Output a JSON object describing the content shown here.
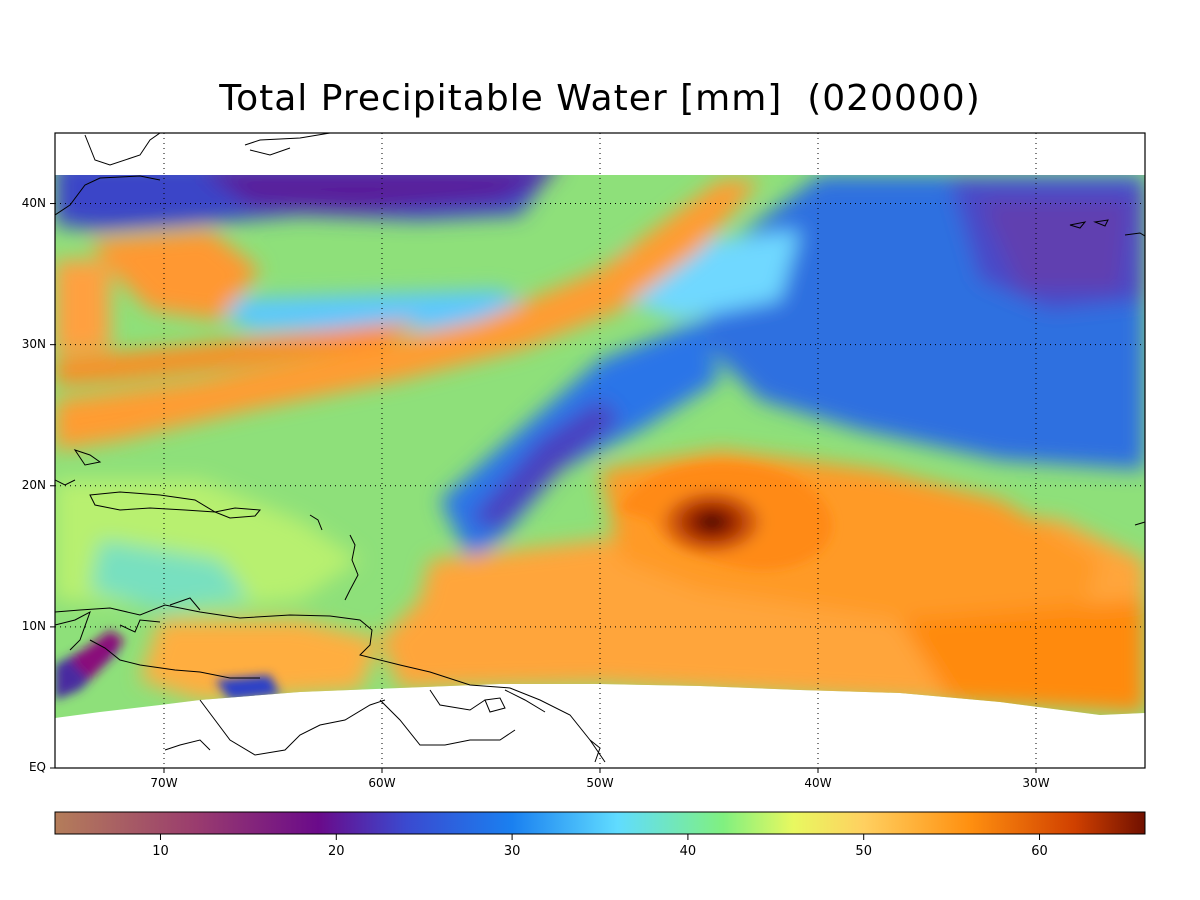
{
  "figure": {
    "title": "Total Precipitable Water [mm]  (020000)"
  },
  "map": {
    "projection": "lat-lon",
    "lon_range": [
      -75,
      -25
    ],
    "lat_range": [
      0,
      45
    ],
    "data_lat_range": [
      4,
      42
    ],
    "lat_ticks": [
      {
        "value": 40,
        "label": "40N"
      },
      {
        "value": 30,
        "label": "30N"
      },
      {
        "value": 20,
        "label": "20N"
      },
      {
        "value": 10,
        "label": "10N"
      },
      {
        "value": 0,
        "label": "EQ"
      }
    ],
    "lon_ticks": [
      {
        "value": -70,
        "label": "70W"
      },
      {
        "value": -60,
        "label": "60W"
      },
      {
        "value": -50,
        "label": "50W"
      },
      {
        "value": -40,
        "label": "40W"
      },
      {
        "value": -30,
        "label": "30W"
      }
    ],
    "gridlines": "dotted",
    "features": [
      "coastlines",
      "tropical-cyclone-moisture-swirl"
    ]
  },
  "colorbar": {
    "range": [
      4,
      66
    ],
    "ticks": [
      {
        "value": 10,
        "label": "10"
      },
      {
        "value": 20,
        "label": "20"
      },
      {
        "value": 30,
        "label": "30"
      },
      {
        "value": 40,
        "label": "40"
      },
      {
        "value": 50,
        "label": "50"
      },
      {
        "value": 60,
        "label": "60"
      }
    ],
    "stops": [
      {
        "value": 4,
        "color": "#b47d5a"
      },
      {
        "value": 12,
        "color": "#9a3c6e"
      },
      {
        "value": 19,
        "color": "#6a0a8a"
      },
      {
        "value": 24,
        "color": "#3a4ad0"
      },
      {
        "value": 30,
        "color": "#1a80f0"
      },
      {
        "value": 36,
        "color": "#60dcff"
      },
      {
        "value": 42,
        "color": "#80f080"
      },
      {
        "value": 46,
        "color": "#e8f860"
      },
      {
        "value": 50,
        "color": "#ffd060"
      },
      {
        "value": 56,
        "color": "#ff9010"
      },
      {
        "value": 62,
        "color": "#d04000"
      },
      {
        "value": 66,
        "color": "#701000"
      }
    ]
  }
}
